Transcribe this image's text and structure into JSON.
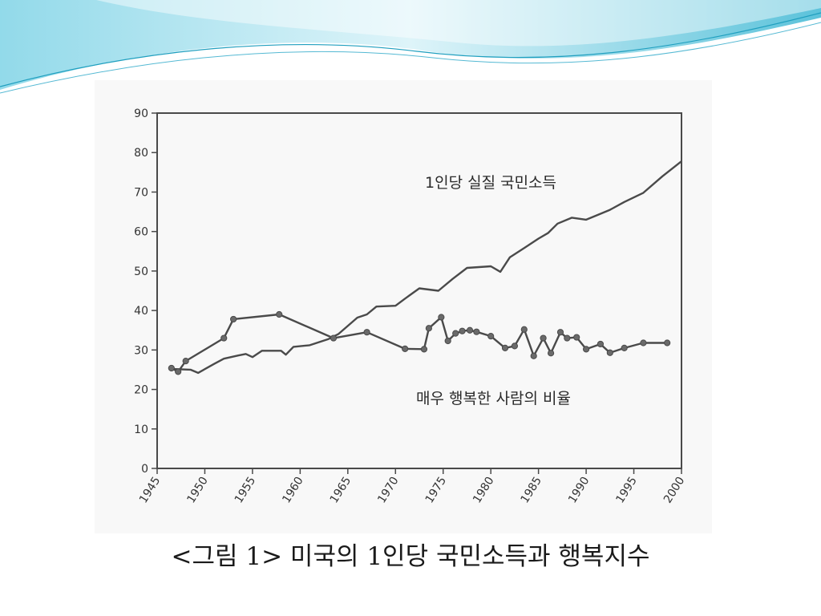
{
  "colors": {
    "header_light": "#d8f2f8",
    "header_mid": "#7fd3e6",
    "header_dark": "#3fb8d4",
    "ink": "#4a4a4a"
  },
  "caption": "<그림 1> 미국의 1인당 국민소득과 행복지수",
  "chart_data": {
    "type": "line",
    "title": "",
    "xlabel": "",
    "ylabel": "",
    "xlim": [
      1945,
      2000
    ],
    "ylim": [
      0,
      90
    ],
    "grid": false,
    "x_ticks": [
      1945,
      1950,
      1955,
      1960,
      1965,
      1970,
      1975,
      1980,
      1985,
      1990,
      1995,
      2000
    ],
    "x_tick_labels": [
      "1945",
      "1950",
      "1955",
      "1960",
      "1965",
      "1970",
      "1975",
      "1980",
      "1985",
      "1990",
      "1995",
      "2000"
    ],
    "y_ticks": [
      0,
      10,
      20,
      30,
      40,
      50,
      60,
      70,
      80,
      90
    ],
    "y_tick_labels": [
      "0",
      "10",
      "20",
      "30",
      "40",
      "50",
      "60",
      "70",
      "80",
      "90"
    ],
    "series": [
      {
        "name": "1인당 실질 국민소득",
        "markers": false,
        "points": [
          [
            1946.5,
            25.2
          ],
          [
            1948.5,
            25.0
          ],
          [
            1949.3,
            24.2
          ],
          [
            1951,
            26.5
          ],
          [
            1952,
            27.8
          ],
          [
            1953.5,
            28.6
          ],
          [
            1954.3,
            29.0
          ],
          [
            1955,
            28.2
          ],
          [
            1956,
            29.8
          ],
          [
            1958,
            29.8
          ],
          [
            1958.5,
            28.8
          ],
          [
            1959.3,
            30.8
          ],
          [
            1961,
            31.2
          ],
          [
            1963,
            32.8
          ],
          [
            1964,
            34.0
          ],
          [
            1966,
            38.2
          ],
          [
            1967,
            39.0
          ],
          [
            1968,
            41.0
          ],
          [
            1970,
            41.2
          ],
          [
            1971,
            43.0
          ],
          [
            1972.5,
            45.6
          ],
          [
            1974.5,
            45.0
          ],
          [
            1976,
            48.0
          ],
          [
            1977.5,
            50.8
          ],
          [
            1980,
            51.2
          ],
          [
            1981,
            49.8
          ],
          [
            1982,
            53.5
          ],
          [
            1983.5,
            55.8
          ],
          [
            1985,
            58.2
          ],
          [
            1986,
            59.6
          ],
          [
            1987,
            62.0
          ],
          [
            1988.5,
            63.5
          ],
          [
            1990,
            63.0
          ],
          [
            1991,
            64.0
          ],
          [
            1992.5,
            65.5
          ],
          [
            1994,
            67.5
          ],
          [
            1996,
            69.8
          ],
          [
            1998,
            74.0
          ],
          [
            2000,
            77.8
          ]
        ]
      },
      {
        "name": "매우 행복한 사람의 비율",
        "markers": true,
        "points": [
          [
            1946.5,
            25.4
          ],
          [
            1947.2,
            24.5
          ],
          [
            1948,
            27.2
          ],
          [
            1952,
            33.0
          ],
          [
            1953,
            37.8
          ],
          [
            1957.8,
            39.0
          ],
          [
            1963.5,
            33.0
          ],
          [
            1967,
            34.5
          ],
          [
            1971,
            30.3
          ],
          [
            1973,
            30.2
          ],
          [
            1973.5,
            35.5
          ],
          [
            1974.8,
            38.3
          ],
          [
            1975.5,
            32.3
          ],
          [
            1976.3,
            34.2
          ],
          [
            1977,
            34.8
          ],
          [
            1977.8,
            35.0
          ],
          [
            1978.5,
            34.6
          ],
          [
            1980,
            33.5
          ],
          [
            1981.5,
            30.5
          ],
          [
            1982.5,
            31.0
          ],
          [
            1983.5,
            35.2
          ],
          [
            1984.5,
            28.5
          ],
          [
            1985.5,
            33.0
          ],
          [
            1986.3,
            29.2
          ],
          [
            1987.3,
            34.5
          ],
          [
            1988,
            33.0
          ],
          [
            1989,
            33.2
          ],
          [
            1990,
            30.2
          ],
          [
            1991.5,
            31.5
          ],
          [
            1992.5,
            29.3
          ],
          [
            1994,
            30.5
          ],
          [
            1996,
            31.8
          ],
          [
            1998.5,
            31.8
          ]
        ]
      }
    ]
  }
}
